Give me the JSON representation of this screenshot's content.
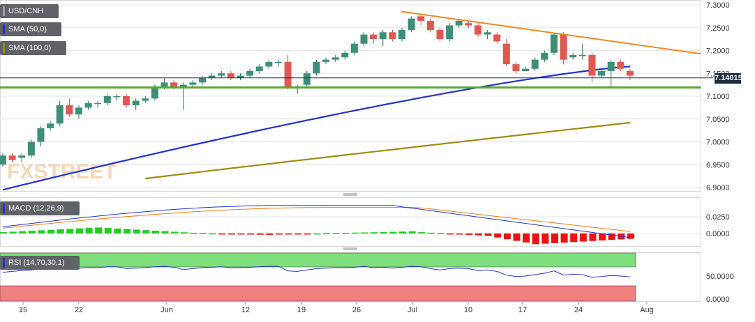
{
  "chart_data": [
    {
      "type": "candlestick",
      "symbol": "USD/CNH",
      "y_ticks": [
        "7.3000",
        "7.2500",
        "7.2000",
        "7.1500",
        "7.1000",
        "7.0500",
        "7.0000",
        "6.9500",
        "6.9000"
      ],
      "ylim": [
        6.895,
        7.305
      ],
      "x_tick_labels": [
        "15",
        "22",
        "Jun",
        "12",
        "19",
        "26",
        "Jul",
        "10",
        "17",
        "24",
        "Aug"
      ],
      "last_price": "7.140150",
      "horizontal_support": 7.119,
      "descending_trendline": [
        7.2855,
        7.193
      ],
      "watermark": "FXSTREET",
      "indicators": [
        {
          "name": "SMA (50,0)",
          "color": "#2233cc"
        },
        {
          "name": "SMA (100,0)",
          "color": "#a08c14"
        }
      ],
      "candles": [
        [
          6.95,
          6.97,
          6.945,
          6.975
        ],
        [
          6.97,
          6.96,
          6.955,
          6.975
        ],
        [
          6.965,
          6.97,
          6.955,
          6.975
        ],
        [
          6.97,
          7.0,
          6.965,
          7.005
        ],
        [
          7.0,
          7.03,
          6.99,
          7.035
        ],
        [
          7.03,
          7.04,
          7.025,
          7.045
        ],
        [
          7.04,
          7.08,
          7.035,
          7.09
        ],
        [
          7.08,
          7.06,
          7.055,
          7.095
        ],
        [
          7.06,
          7.075,
          7.05,
          7.08
        ],
        [
          7.075,
          7.085,
          7.07,
          7.09
        ],
        [
          7.085,
          7.085,
          7.075,
          7.09
        ],
        [
          7.085,
          7.1,
          7.08,
          7.105
        ],
        [
          7.1,
          7.1,
          7.09,
          7.105
        ],
        [
          7.1,
          7.08,
          7.075,
          7.105
        ],
        [
          7.08,
          7.09,
          7.07,
          7.095
        ],
        [
          7.09,
          7.095,
          7.085,
          7.1
        ],
        [
          7.095,
          7.12,
          7.09,
          7.125
        ],
        [
          7.12,
          7.13,
          7.115,
          7.14
        ],
        [
          7.13,
          7.12,
          7.115,
          7.135
        ],
        [
          7.12,
          7.125,
          7.07,
          7.13
        ],
        [
          7.125,
          7.13,
          7.12,
          7.135
        ],
        [
          7.13,
          7.14,
          7.125,
          7.145
        ],
        [
          7.14,
          7.145,
          7.135,
          7.15
        ],
        [
          7.145,
          7.15,
          7.14,
          7.155
        ],
        [
          7.15,
          7.14,
          7.135,
          7.155
        ],
        [
          7.14,
          7.145,
          7.135,
          7.15
        ],
        [
          7.145,
          7.155,
          7.14,
          7.16
        ],
        [
          7.155,
          7.165,
          7.15,
          7.17
        ],
        [
          7.165,
          7.175,
          7.16,
          7.18
        ],
        [
          7.175,
          7.175,
          7.165,
          7.18
        ],
        [
          7.175,
          7.12,
          7.115,
          7.19
        ],
        [
          7.12,
          7.12,
          7.105,
          7.125
        ],
        [
          7.125,
          7.15,
          7.12,
          7.155
        ],
        [
          7.15,
          7.175,
          7.145,
          7.18
        ],
        [
          7.175,
          7.18,
          7.17,
          7.185
        ],
        [
          7.18,
          7.185,
          7.175,
          7.19
        ],
        [
          7.185,
          7.195,
          7.18,
          7.2
        ],
        [
          7.195,
          7.215,
          7.19,
          7.22
        ],
        [
          7.215,
          7.235,
          7.21,
          7.24
        ],
        [
          7.235,
          7.225,
          7.215,
          7.24
        ],
        [
          7.225,
          7.24,
          7.21,
          7.245
        ],
        [
          7.24,
          7.225,
          7.22,
          7.245
        ],
        [
          7.225,
          7.245,
          7.22,
          7.25
        ],
        [
          7.245,
          7.27,
          7.24,
          7.275
        ],
        [
          7.275,
          7.265,
          7.255,
          7.28
        ],
        [
          7.265,
          7.245,
          7.24,
          7.27
        ],
        [
          7.245,
          7.225,
          7.22,
          7.25
        ],
        [
          7.225,
          7.255,
          7.22,
          7.26
        ],
        [
          7.255,
          7.265,
          7.25,
          7.27
        ],
        [
          7.26,
          7.255,
          7.25,
          7.265
        ],
        [
          7.255,
          7.235,
          7.23,
          7.26
        ],
        [
          7.235,
          7.24,
          7.225,
          7.245
        ],
        [
          7.235,
          7.22,
          7.215,
          7.24
        ],
        [
          7.215,
          7.17,
          7.165,
          7.225
        ],
        [
          7.17,
          7.155,
          7.15,
          7.175
        ],
        [
          7.155,
          7.16,
          7.155,
          7.165
        ],
        [
          7.16,
          7.18,
          7.155,
          7.185
        ],
        [
          7.18,
          7.195,
          7.175,
          7.2
        ],
        [
          7.195,
          7.235,
          7.19,
          7.24
        ],
        [
          7.235,
          7.18,
          7.17,
          7.24
        ],
        [
          7.185,
          7.19,
          7.18,
          7.195
        ],
        [
          7.19,
          7.19,
          7.18,
          7.215
        ],
        [
          7.19,
          7.145,
          7.13,
          7.195
        ],
        [
          7.145,
          7.155,
          7.14,
          7.16
        ],
        [
          7.155,
          7.175,
          7.12,
          7.18
        ],
        [
          7.175,
          7.16,
          7.155,
          7.18
        ],
        [
          7.155,
          7.145,
          7.135,
          7.16
        ]
      ]
    },
    {
      "type": "line",
      "name": "MACD (12,26,9)",
      "y_ticks": [
        "0.0250",
        "0.0000"
      ],
      "macd_line_color": "#2233cc",
      "signal_line_color": "#f07a10",
      "histogram_positive_color": "#22cc22",
      "histogram_negative_color": "#ee1111"
    },
    {
      "type": "line",
      "name": "RSI (14,70,30,1)",
      "y_ticks": [
        "50.0000",
        "0.0000"
      ],
      "overbought_color": "#7de07d",
      "oversold_color": "#f08080",
      "line_color": "#2233cc"
    }
  ]
}
